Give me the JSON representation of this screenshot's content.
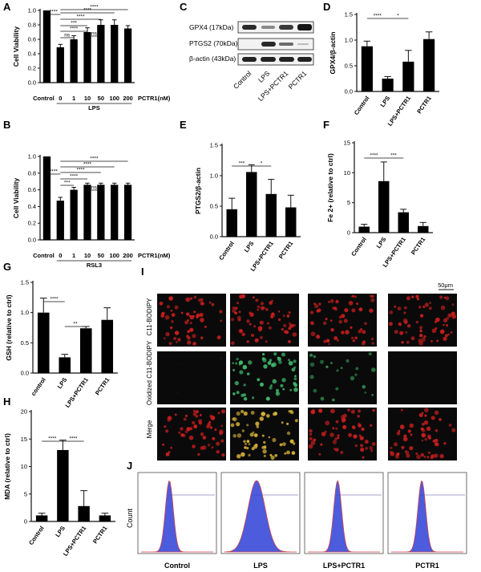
{
  "panels": {
    "A": {
      "letter": "A",
      "chart": {
        "type": "bar",
        "ylabel": "Cell Viability",
        "ylim": [
          0,
          1.0
        ],
        "yticks": [
          "0.0",
          "0.2",
          "0.4",
          "0.6",
          "0.8",
          "1.0"
        ],
        "categories": [
          "Control",
          "0",
          "1",
          "10",
          "50",
          "100",
          "200"
        ],
        "values": [
          1.0,
          0.49,
          0.6,
          0.7,
          0.8,
          0.8,
          0.75
        ],
        "errors": [
          0.0,
          0.04,
          0.05,
          0.06,
          0.07,
          0.07,
          0.04
        ],
        "group_label": "LPS",
        "axis_suffix": "PCTR1(nM)",
        "sig": [
          "****",
          "ns",
          "****",
          "***",
          "****",
          "ns",
          "****",
          "****"
        ]
      }
    },
    "B": {
      "letter": "B",
      "chart": {
        "type": "bar",
        "ylabel": "Cell Viability",
        "ylim": [
          0,
          1.0
        ],
        "yticks": [
          "0.0",
          "0.2",
          "0.4",
          "0.6",
          "0.8",
          "1.0"
        ],
        "categories": [
          "Control",
          "0",
          "1",
          "10",
          "50",
          "100",
          "200"
        ],
        "values": [
          1.0,
          0.47,
          0.6,
          0.66,
          0.66,
          0.66,
          0.66
        ],
        "errors": [
          0.0,
          0.04,
          0.03,
          0.02,
          0.02,
          0.02,
          0.02
        ],
        "group_label": "RSL3",
        "axis_suffix": "PCTR1(nM)",
        "sig": [
          "****",
          "****",
          "****",
          "****",
          "****",
          "***",
          "ns"
        ]
      }
    },
    "C": {
      "letter": "C",
      "bands": [
        "GPX4 (17kDa)",
        "PTGS2 (70kDa)",
        "β-actin (43kDa)"
      ],
      "lanes": [
        "Control",
        "LPS",
        "LPS+PCTR1",
        "PCTR1"
      ]
    },
    "D": {
      "letter": "D",
      "chart": {
        "type": "bar",
        "ylabel": "GPX4/β-actin",
        "ylim": [
          0,
          1.5
        ],
        "yticks": [
          "0.0",
          "0.5",
          "1.0",
          "1.5"
        ],
        "categories": [
          "Control",
          "LPS",
          "LPS+PCTR1",
          "PCTR1"
        ],
        "values": [
          0.88,
          0.25,
          0.58,
          1.02
        ],
        "errors": [
          0.1,
          0.04,
          0.22,
          0.14
        ],
        "sig": [
          "****",
          "*"
        ]
      }
    },
    "E": {
      "letter": "E",
      "chart": {
        "type": "bar",
        "ylabel": "PTGS2/β-actin",
        "ylim": [
          0,
          1.5
        ],
        "yticks": [
          "0.0",
          "0.5",
          "1.0",
          "1.5"
        ],
        "categories": [
          "Control",
          "LPS",
          "LPS+PCTR1",
          "PCTR1"
        ],
        "values": [
          0.45,
          1.06,
          0.7,
          0.48
        ],
        "errors": [
          0.18,
          0.12,
          0.24,
          0.2
        ],
        "sig": [
          "***",
          "*"
        ]
      }
    },
    "F": {
      "letter": "F",
      "chart": {
        "type": "bar",
        "ylabel": "Fe 2+ (relative to ctrl)",
        "ylim": [
          0,
          15
        ],
        "yticks": [
          "0",
          "5",
          "10",
          "15"
        ],
        "categories": [
          "Control",
          "LPS",
          "LPS+PCTR1",
          "PCTR1"
        ],
        "values": [
          1.0,
          8.6,
          3.4,
          1.1
        ],
        "errors": [
          0.4,
          3.2,
          0.5,
          0.6
        ],
        "sig": [
          "****",
          "***"
        ]
      }
    },
    "G": {
      "letter": "G",
      "chart": {
        "type": "bar",
        "ylabel": "GSH (relative to ctrl)",
        "ylim": [
          0,
          1.5
        ],
        "yticks": [
          "0.0",
          "0.5",
          "1.0",
          "1.5"
        ],
        "categories": [
          "control",
          "LPS",
          "LPS+PCTR1",
          "PCTR1"
        ],
        "values": [
          1.0,
          0.26,
          0.74,
          0.88
        ],
        "errors": [
          0.24,
          0.05,
          0.03,
          0.2
        ],
        "sig": [
          "****",
          "**"
        ]
      }
    },
    "H": {
      "letter": "H",
      "chart": {
        "type": "bar",
        "ylabel": "MDA (relative to ctrl)",
        "ylim": [
          0,
          20
        ],
        "yticks": [
          "0",
          "5",
          "10",
          "15",
          "20"
        ],
        "categories": [
          "Control",
          "LPS",
          "LPS+PCTR1",
          "PCTR1"
        ],
        "values": [
          1.1,
          13.0,
          2.8,
          1.1
        ],
        "errors": [
          0.4,
          1.8,
          2.8,
          0.4
        ],
        "sig": [
          "****",
          "****"
        ]
      }
    },
    "I": {
      "letter": "I",
      "scale_bar": "50μm",
      "rows": [
        "C11-BODIPY",
        "Oxidized C11-BODIPY",
        "Merge"
      ]
    },
    "J": {
      "letter": "J",
      "ylabel": "Count",
      "groups": [
        "Control",
        "LPS",
        "LPS+PCTR1",
        "PCTR1"
      ]
    }
  },
  "colors": {
    "bar": "#000000",
    "red_fluor": "#d42020",
    "green_fluor": "#3fb86a",
    "merge_yellow": "#d8b23a",
    "hist_fill": "#2d3fd6",
    "hist_outline": "#d0444a"
  }
}
